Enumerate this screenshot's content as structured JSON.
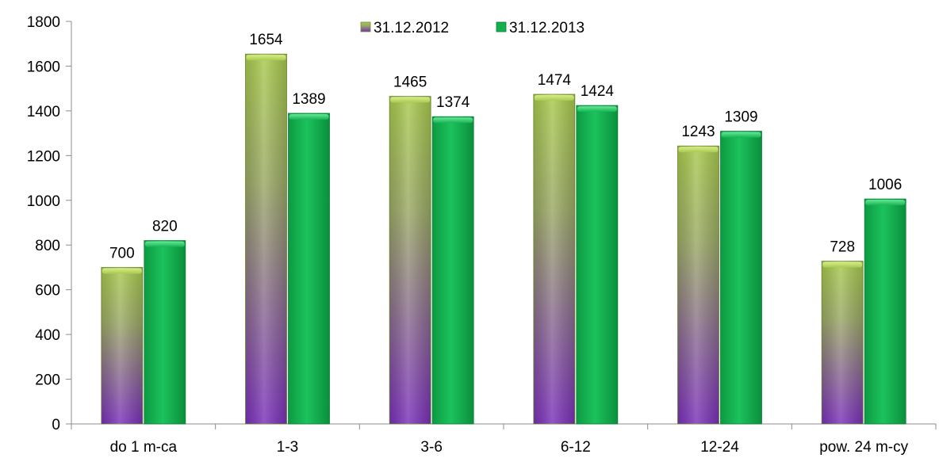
{
  "chart_data": {
    "type": "bar",
    "categories": [
      "do 1 m-ca",
      "1-3",
      "3-6",
      "6-12",
      "12-24",
      "pow. 24 m-cy"
    ],
    "series": [
      {
        "name": "31.12.2012",
        "values": [
          700,
          1654,
          1465,
          1474,
          1243,
          728
        ]
      },
      {
        "name": "31.12.2013",
        "values": [
          820,
          1389,
          1374,
          1424,
          1309,
          1006
        ]
      }
    ],
    "title": "",
    "xlabel": "",
    "ylabel": "",
    "ylim": [
      0,
      1800
    ],
    "yticks": [
      0,
      200,
      400,
      600,
      800,
      1000,
      1200,
      1400,
      1600,
      1800
    ],
    "grid": false,
    "legend_position": "top"
  },
  "colors": {
    "series_2012_top": "#a6c84a",
    "series_2012_bottom": "#7a33b8",
    "series_2013": "#14b050",
    "series_2013_dark": "#0a8f3c"
  }
}
